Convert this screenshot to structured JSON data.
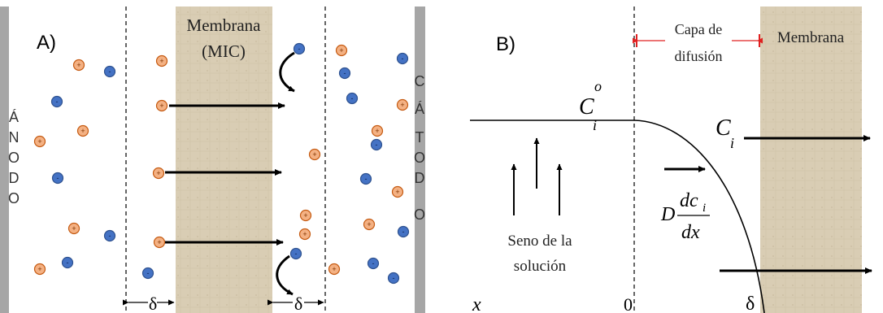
{
  "panel_a": {
    "label": "A)",
    "membrane_label_line1": "Membrana",
    "membrane_label_line2": "(MIC)",
    "anode_letters": [
      "Á",
      "N",
      "O",
      "D",
      "O"
    ],
    "cathode_letters": [
      "C",
      "Á",
      "T",
      "O",
      "D",
      "O"
    ],
    "delta_left": "δ",
    "delta_right": "δ",
    "plus_sign": "+",
    "minus_sign": "-"
  },
  "panel_b": {
    "label": "B)",
    "diffusion_layer_line1": "Capa de",
    "diffusion_layer_line2": "difusión",
    "membrane_label": "Membrana",
    "ci0_base": "C",
    "ci0_sup": "o",
    "ci0_sub": "i",
    "ci_base": "C",
    "ci_sub": "i",
    "flux_D": "D",
    "flux_num": "dc",
    "flux_num_sub": "i",
    "flux_den": "dx",
    "bulk_line1": "Seno de la",
    "bulk_line2": "solución",
    "axis_x": "x",
    "axis_zero": "0",
    "axis_delta": "δ"
  },
  "colors": {
    "cation_fill": "#f4b183",
    "cation_stroke": "#c55a11",
    "anion_fill": "#4472c4",
    "anion_stroke": "#2f528f",
    "electrode": "#a6a6a6",
    "membrane": "#d9cdb4",
    "scale_marker": "#e02020"
  }
}
